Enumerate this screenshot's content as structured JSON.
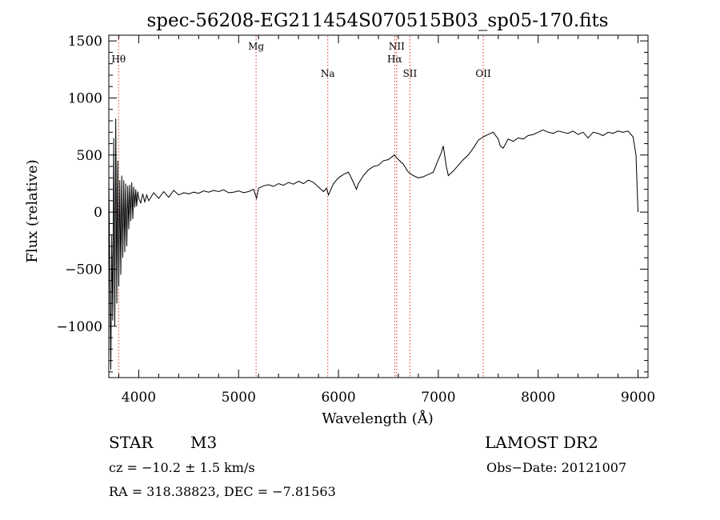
{
  "chart_data": {
    "type": "line",
    "title": "spec-56208-EG211454S070515B03_sp05-170.fits",
    "xlabel": "Wavelength (Å)",
    "ylabel": "Flux (relative)",
    "xlim": [
      3700,
      9100
    ],
    "ylim": [
      -1450,
      1550
    ],
    "x_ticks": [
      "4000",
      "5000",
      "6000",
      "7000",
      "8000",
      "9000"
    ],
    "x_tick_values": [
      4000,
      5000,
      6000,
      7000,
      8000,
      9000
    ],
    "y_ticks": [
      "1500",
      "1000",
      "500",
      "0",
      "−500",
      "−1000"
    ],
    "y_tick_values": [
      1500,
      1000,
      500,
      0,
      -500,
      -1000
    ],
    "grid": false,
    "line_markers": [
      {
        "label": "Hθ",
        "wavelength": 3798,
        "label_row": 1
      },
      {
        "label": "Mg",
        "wavelength": 5175,
        "label_row": 0
      },
      {
        "label": "Na",
        "wavelength": 5893,
        "label_row": 2
      },
      {
        "label": "NII",
        "wavelength": 6583,
        "label_row": 0
      },
      {
        "label": "Hα",
        "wavelength": 6563,
        "label_row": 1
      },
      {
        "label": "SII",
        "wavelength": 6716,
        "label_row": 2
      },
      {
        "label": "OII",
        "wavelength": 7450,
        "label_row": 2
      }
    ],
    "marker_color": "#e0342a",
    "series": [
      {
        "x": [
          3700,
          3720,
          3730,
          3740,
          3750,
          3760,
          3770,
          3780,
          3790,
          3800,
          3810,
          3820,
          3830,
          3840,
          3850,
          3860,
          3870,
          3880,
          3890,
          3900,
          3910,
          3920,
          3930,
          3940,
          3950,
          3960,
          3970,
          3980,
          3990,
          4000,
          4020,
          4040,
          4060,
          4080,
          4100,
          4150,
          4200,
          4250,
          4300,
          4350,
          4400,
          4450,
          4500,
          4550,
          4600,
          4650,
          4700,
          4750,
          4800,
          4850,
          4900,
          4950,
          5000,
          5050,
          5100,
          5150,
          5180,
          5200,
          5250,
          5300,
          5350,
          5400,
          5450,
          5500,
          5550,
          5600,
          5650,
          5700,
          5750,
          5800,
          5850,
          5880,
          5900,
          5950,
          6000,
          6050,
          6100,
          6150,
          6180,
          6200,
          6250,
          6300,
          6350,
          6400,
          6450,
          6500,
          6530,
          6560,
          6580,
          6600,
          6650,
          6700,
          6750,
          6800,
          6850,
          6900,
          6950,
          7000,
          7030,
          7050,
          7080,
          7100,
          7150,
          7200,
          7250,
          7300,
          7350,
          7400,
          7450,
          7500,
          7550,
          7600,
          7620,
          7650,
          7700,
          7750,
          7800,
          7850,
          7900,
          7950,
          8000,
          8050,
          8100,
          8150,
          8200,
          8250,
          8300,
          8350,
          8400,
          8450,
          8500,
          8550,
          8600,
          8650,
          8700,
          8750,
          8800,
          8850,
          8900,
          8950,
          8980,
          9000
        ],
        "y": [
          300,
          -1380,
          -200,
          -950,
          650,
          -1000,
          820,
          -800,
          450,
          -650,
          280,
          -550,
          320,
          -400,
          280,
          -350,
          250,
          -300,
          230,
          -150,
          240,
          -80,
          260,
          -60,
          220,
          40,
          200,
          50,
          180,
          120,
          80,
          160,
          90,
          150,
          100,
          170,
          120,
          180,
          130,
          190,
          150,
          170,
          160,
          175,
          165,
          185,
          175,
          190,
          180,
          195,
          170,
          175,
          185,
          170,
          180,
          200,
          120,
          210,
          230,
          240,
          225,
          250,
          235,
          260,
          245,
          270,
          250,
          280,
          260,
          220,
          180,
          210,
          150,
          250,
          300,
          330,
          350,
          260,
          200,
          250,
          320,
          370,
          400,
          410,
          450,
          460,
          480,
          500,
          480,
          460,
          420,
          350,
          320,
          300,
          310,
          330,
          350,
          460,
          520,
          580,
          400,
          320,
          360,
          410,
          460,
          500,
          560,
          630,
          660,
          680,
          700,
          640,
          580,
          560,
          640,
          620,
          650,
          640,
          670,
          680,
          700,
          720,
          700,
          690,
          710,
          700,
          690,
          710,
          680,
          700,
          650,
          700,
          690,
          670,
          700,
          690,
          710,
          700,
          710,
          660,
          500,
          0
        ]
      }
    ]
  },
  "info": {
    "class_label": "STAR",
    "subclass_label": "M3",
    "survey_label": "LAMOST DR2",
    "cz_text": "cz = −10.2 ± 1.5 km/s",
    "obs_date_text": "Obs−Date: 20121007",
    "coords_text": "RA = 318.38823, DEC =  −7.81563"
  }
}
